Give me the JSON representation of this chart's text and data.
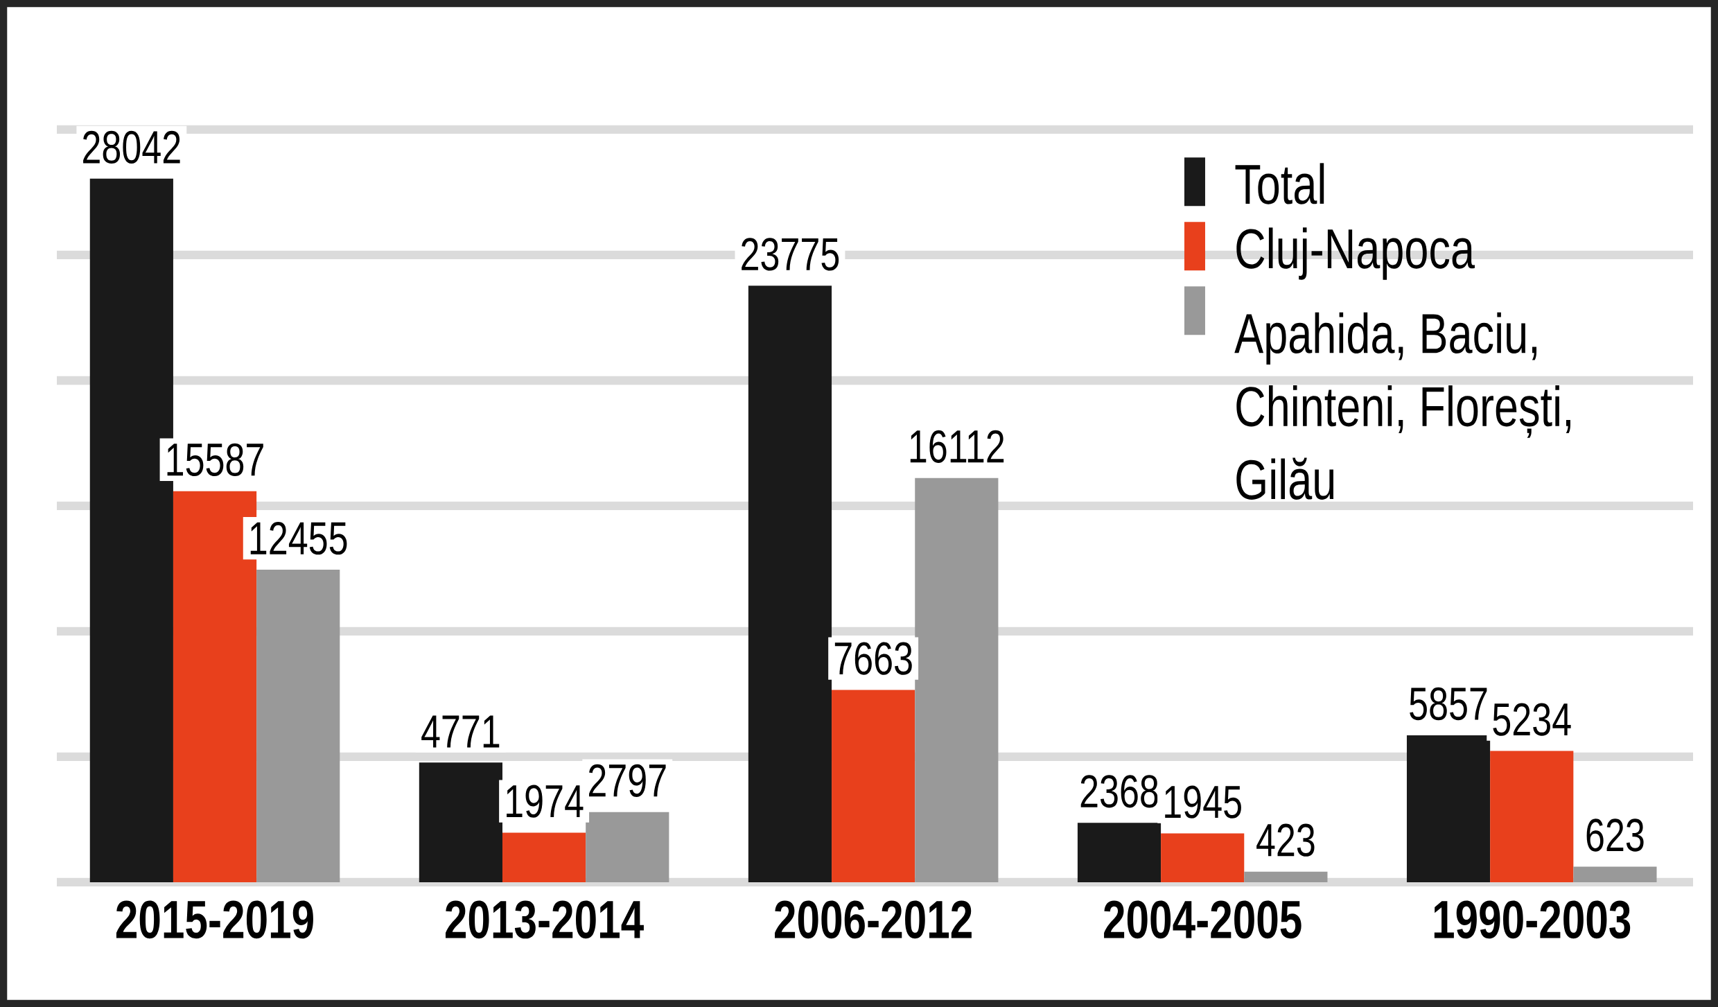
{
  "chart_data": {
    "type": "bar",
    "categories": [
      "2015-2019",
      "2013-2014",
      "2006-2012",
      "2004-2005",
      "1990-2003"
    ],
    "series": [
      {
        "name": "Total",
        "color": "#1a1a1a",
        "values": [
          28042,
          4771,
          23775,
          2368,
          5857
        ],
        "value_labels": [
          "28042",
          "4771",
          "23775",
          "2368",
          "5857"
        ]
      },
      {
        "name": "Cluj-Napoca",
        "color": "#e8401c",
        "values": [
          15587,
          1974,
          7663,
          1945,
          5234
        ],
        "value_labels": [
          "15587",
          "1974",
          "7663",
          "1945",
          "5234"
        ]
      },
      {
        "name": "Apahida, Baciu, Chinteni, Florești, Gilău",
        "color": "#999999",
        "values": [
          12455,
          2797,
          16112,
          423,
          623
        ],
        "value_labels": [
          "12455",
          "2797",
          "16112",
          "423",
          "623"
        ]
      }
    ],
    "ylim": [
      0,
      30000
    ],
    "yticks": [
      {
        "value": 0,
        "label": null
      },
      {
        "value": 5000,
        "label": null
      },
      {
        "value": 10000,
        "label": null
      },
      {
        "value": 15000,
        "label": null
      },
      {
        "value": 20000,
        "label": null
      },
      {
        "value": 25000,
        "label": null
      },
      {
        "value": 30000,
        "label": null
      }
    ],
    "tick_labels": "x",
    "grid": "y",
    "legend": "top right"
  }
}
